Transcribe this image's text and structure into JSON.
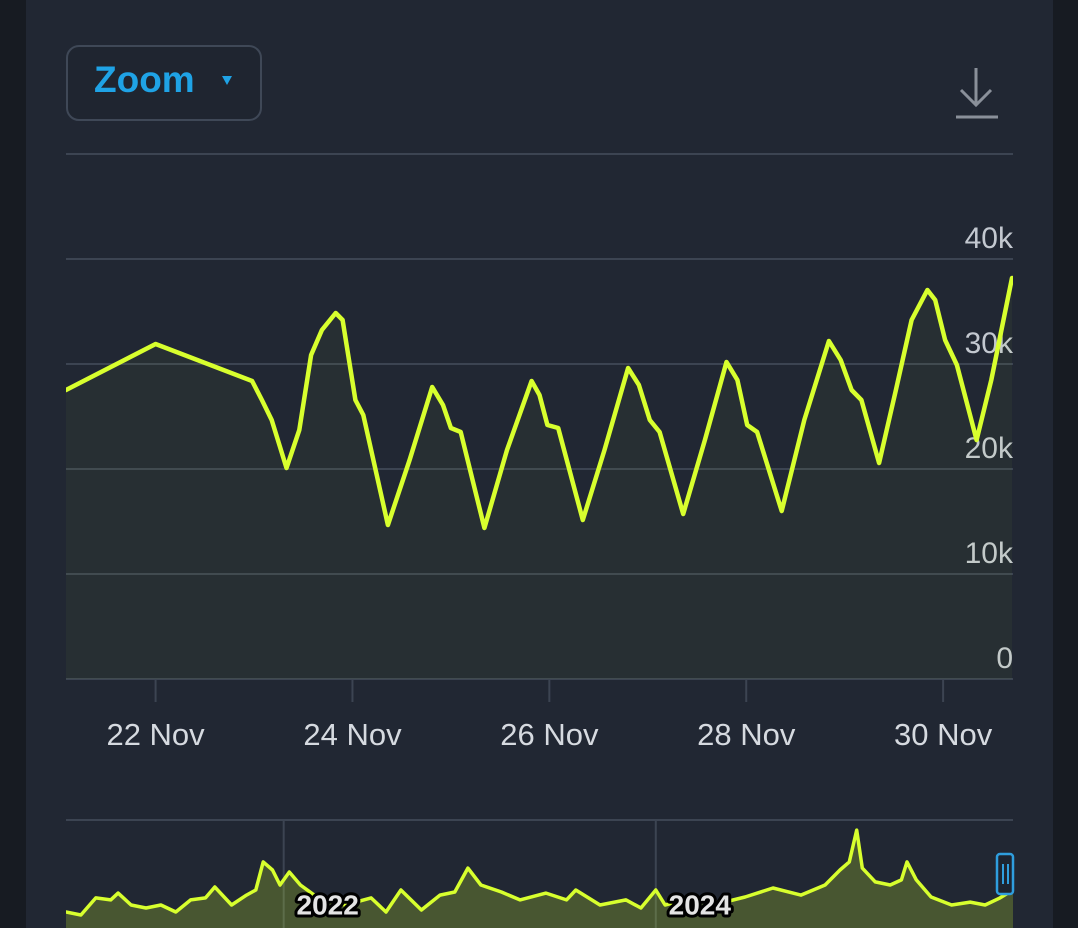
{
  "zoom_button": "Zoom",
  "chart_data": [
    {
      "type": "line",
      "color": "#d8ff2e",
      "x": [
        21.09,
        22.0,
        22.98,
        23.08,
        23.18,
        23.33,
        23.46,
        23.58,
        23.69,
        23.83,
        23.9,
        24.03,
        24.11,
        24.36,
        24.58,
        24.81,
        24.92,
        25.0,
        25.1,
        25.34,
        25.57,
        25.82,
        25.9,
        25.98,
        26.09,
        26.34,
        26.56,
        26.8,
        26.91,
        27.02,
        27.12,
        27.36,
        27.58,
        27.8,
        27.91,
        28.01,
        28.11,
        28.36,
        28.59,
        28.84,
        28.96,
        29.07,
        29.17,
        29.35,
        29.52,
        29.68,
        29.84,
        29.92,
        30.02,
        30.14,
        30.34,
        30.49,
        30.7
      ],
      "values": [
        27524,
        31905,
        28381,
        26571,
        24667,
        20095,
        23714,
        30857,
        33238,
        34857,
        34190,
        26571,
        25143,
        14667,
        20857,
        27810,
        26095,
        23905,
        23524,
        14381,
        21810,
        28381,
        27048,
        24190,
        23905,
        15143,
        21810,
        29619,
        28000,
        24667,
        23524,
        15714,
        22762,
        30190,
        28476,
        24190,
        23524,
        16000,
        24667,
        32190,
        30381,
        27524,
        26571,
        20571,
        27524,
        34190,
        37048,
        36095,
        32286,
        29905,
        22762,
        28476,
        38190
      ],
      "xlim": [
        21.09,
        30.71
      ],
      "xticks": [
        {
          "value": 22,
          "label": "22 Nov"
        },
        {
          "value": 24,
          "label": "24 Nov"
        },
        {
          "value": 26,
          "label": "26 Nov"
        },
        {
          "value": 28,
          "label": "28 Nov"
        },
        {
          "value": 30,
          "label": "30 Nov"
        }
      ],
      "ylim": [
        0,
        50000
      ],
      "yticks": [
        {
          "value": 0,
          "label": "0"
        },
        {
          "value": 10000,
          "label": "10k"
        },
        {
          "value": 20000,
          "label": "20k"
        },
        {
          "value": 30000,
          "label": "30k"
        },
        {
          "value": 40000,
          "label": "40k"
        }
      ],
      "grid": true
    },
    {
      "type": "line",
      "color": "#d8ff2e",
      "x": [
        2020.83,
        2020.91,
        2020.99,
        2021.07,
        2021.11,
        2021.18,
        2021.26,
        2021.34,
        2021.42,
        2021.5,
        2021.58,
        2021.63,
        2021.72,
        2021.8,
        2021.85,
        2021.89,
        2021.94,
        2021.98,
        2022.03,
        2022.09,
        2022.2,
        2022.33,
        2022.47,
        2022.55,
        2022.63,
        2022.74,
        2022.84,
        2022.92,
        2022.99,
        2023.06,
        2023.17,
        2023.27,
        2023.41,
        2023.52,
        2023.57,
        2023.7,
        2023.84,
        2023.92,
        2024.0,
        2024.05,
        2024.19,
        2024.35,
        2024.48,
        2024.63,
        2024.78,
        2024.91,
        2024.99,
        2025.04,
        2025.08,
        2025.11,
        2025.18,
        2025.26,
        2025.32,
        2025.35,
        2025.4,
        2025.48,
        2025.59,
        2025.69,
        2025.77,
        2025.85,
        2025.92
      ],
      "values": [
        8900,
        7200,
        16700,
        15600,
        19400,
        12800,
        11100,
        12800,
        8900,
        15600,
        16700,
        22800,
        12800,
        18300,
        21100,
        36700,
        32200,
        23900,
        31100,
        23900,
        15600,
        12800,
        16700,
        8900,
        21100,
        10000,
        18300,
        20000,
        33300,
        23900,
        20000,
        15600,
        19400,
        15600,
        21100,
        12800,
        15600,
        11100,
        21100,
        12800,
        16700,
        13900,
        17200,
        22200,
        18300,
        23900,
        32200,
        36700,
        54400,
        33300,
        25600,
        23900,
        26700,
        36700,
        26700,
        17200,
        12800,
        14400,
        12800,
        16700,
        21100
      ],
      "xlim": [
        2020.83,
        2025.92
      ],
      "xticks": [
        2022,
        2024
      ],
      "ylim": [
        0,
        60000
      ]
    }
  ]
}
